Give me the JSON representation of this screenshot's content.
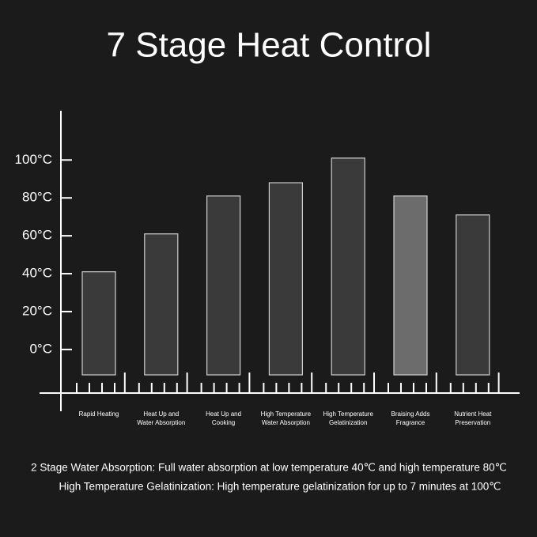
{
  "chart_data": {
    "type": "bar",
    "title": "7 Stage Heat Control",
    "categories": [
      [
        "Rapid Heating"
      ],
      [
        "Heat Up and",
        "Water Absorption"
      ],
      [
        "Heat Up and",
        "Cooking"
      ],
      [
        "High Temperature",
        "Water Absorption"
      ],
      [
        "High Temperature",
        "Gelatinization"
      ],
      [
        "Braising Adds",
        "Fragrance"
      ],
      [
        "Nutrient Heat",
        "Preservation"
      ]
    ],
    "values": [
      41,
      61,
      81,
      88,
      101,
      81,
      71
    ],
    "colors": [
      "#3a3a3a",
      "#3a3a3a",
      "#3a3a3a",
      "#3a3a3a",
      "#3a3a3a",
      "#6c6c6c",
      "#3a3a3a"
    ],
    "ylim": [
      -23,
      126
    ],
    "yticks": [
      {
        "value": 0,
        "label": "0°C"
      },
      {
        "value": 20,
        "label": "20°C"
      },
      {
        "value": 40,
        "label": "40°C"
      },
      {
        "value": 60,
        "label": "60°C"
      },
      {
        "value": 80,
        "label": "80°C"
      },
      {
        "value": 100,
        "label": "100°C"
      }
    ],
    "notes": [
      "2 Stage Water Absorption: Full water absorption at low temperature 40℃ and high temperature 80℃",
      "High Temperature Gelatinization: High temperature gelatinization for up to 7 minutes at 100℃"
    ]
  }
}
